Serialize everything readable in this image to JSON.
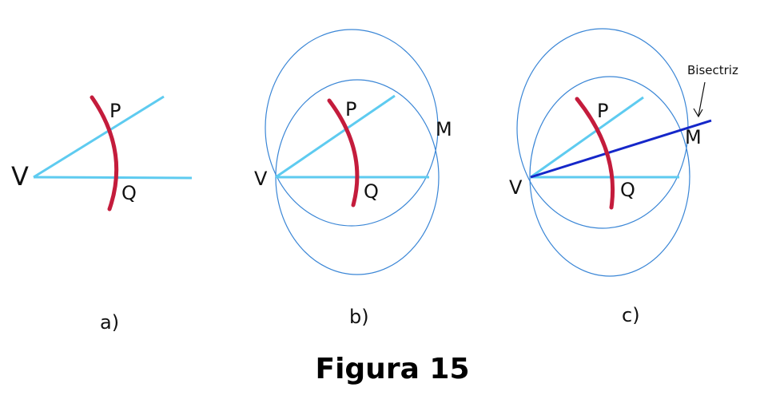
{
  "colors": {
    "ray": "#5ecbf0",
    "arc": "#c41c3c",
    "circle": "#3a86d6",
    "bisector": "#1527c9",
    "text": "#111111"
  },
  "panels": {
    "a": {
      "caption": "a)",
      "vertex_label": "V",
      "p_label": "P",
      "q_label": "Q"
    },
    "b": {
      "caption": "b)",
      "vertex_label": "V",
      "p_label": "P",
      "q_label": "Q",
      "m_label": "M"
    },
    "c": {
      "caption": "c)",
      "vertex_label": "V",
      "p_label": "P",
      "q_label": "Q",
      "m_label": "M",
      "bisector_label": "Bisectriz"
    }
  },
  "figure_title": "Figura 15"
}
